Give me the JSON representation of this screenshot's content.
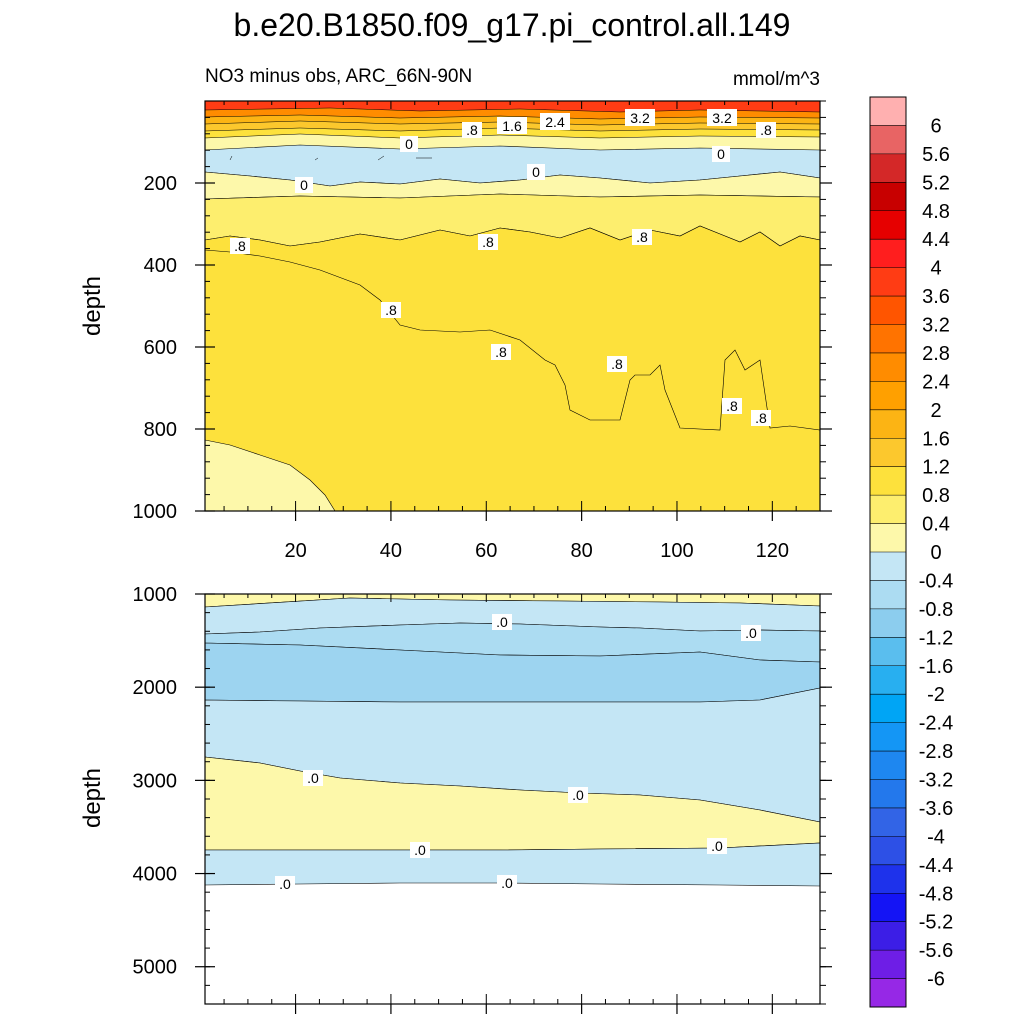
{
  "chart_data": {
    "type": "contour",
    "title": "b.e20.B1850.f09_g17.pi_control.all.149",
    "subtitle_left": "NO3 minus obs, ARC_66N-90N",
    "subtitle_right": "mmol/m^3",
    "x_ticks": [
      "20",
      "40",
      "60",
      "80",
      "100",
      "120"
    ],
    "xlim": [
      1,
      130
    ],
    "top_panel": {
      "ylabel": "depth",
      "ylim": [
        0,
        1000
      ],
      "y_ticks": [
        "200",
        "400",
        "600",
        "800",
        "1000"
      ],
      "contour_labels": [
        ".8",
        "1.6",
        "2.4",
        "3.2",
        "3.2",
        ".8",
        "0",
        "0",
        "0",
        "0",
        ".8",
        ".8",
        ".8",
        ".8",
        ".8",
        ".8",
        ".8",
        ".8"
      ]
    },
    "bottom_panel": {
      "ylabel": "depth",
      "ylim": [
        1000,
        5400
      ],
      "y_ticks": [
        "1000",
        "2000",
        "3000",
        "4000",
        "5000"
      ],
      "contour_labels": [
        ".0",
        ".0",
        ".0",
        ".0",
        ".0",
        ".0",
        ".0",
        ".0"
      ]
    },
    "colorbar": {
      "levels": [
        "6",
        "5.6",
        "5.2",
        "4.8",
        "4.4",
        "4",
        "3.6",
        "3.2",
        "2.8",
        "2.4",
        "2",
        "1.6",
        "1.2",
        "0.8",
        "0.4",
        "0",
        "-0.4",
        "-0.8",
        "-1.2",
        "-1.6",
        "-2",
        "-2.4",
        "-2.8",
        "-3.2",
        "-3.6",
        "-4",
        "-4.4",
        "-4.8",
        "-5.2",
        "-5.6",
        "-6"
      ],
      "colors": [
        "#ffb0b0",
        "#e86464",
        "#d42828",
        "#c80000",
        "#e60000",
        "#ff1e1e",
        "#ff3c14",
        "#ff5500",
        "#ff7300",
        "#ff8c00",
        "#ffa000",
        "#fcb414",
        "#fcc82d",
        "#fde13c",
        "#fdee6e",
        "#fdf8aa",
        "#c4e6f5",
        "#acdcf2",
        "#8ccdee",
        "#5abeee",
        "#28aff0",
        "#00a5f5",
        "#1496f5",
        "#1e87f0",
        "#2378ec",
        "#3264e6",
        "#2d50e6",
        "#1e32eb",
        "#1414f5",
        "#3c1ee6",
        "#6e1ee6",
        "#9628e6"
      ]
    }
  }
}
